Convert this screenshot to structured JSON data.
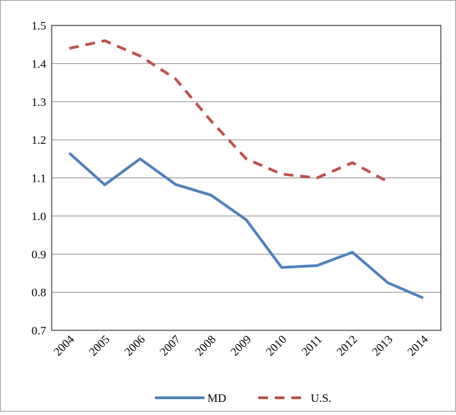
{
  "chart_data": {
    "type": "line",
    "categories": [
      "2004",
      "2005",
      "2006",
      "2007",
      "2008",
      "2009",
      "2010",
      "2011",
      "2012",
      "2013",
      "2014"
    ],
    "series": [
      {
        "name": "MD",
        "color": "#4f81bd",
        "dashed": false,
        "values": [
          1.165,
          1.082,
          1.15,
          1.083,
          1.055,
          0.99,
          0.865,
          0.87,
          0.905,
          0.825,
          0.785
        ]
      },
      {
        "name": "U.S.",
        "color": "#c0504d",
        "dashed": true,
        "values": [
          1.44,
          1.46,
          1.42,
          1.36,
          1.25,
          1.15,
          1.11,
          1.1,
          1.14,
          1.09,
          null
        ]
      }
    ],
    "ylim": [
      0.7,
      1.5
    ],
    "yticks": [
      0.7,
      0.8,
      0.9,
      {
        "value": 1,
        "label": "1.0"
      },
      1.1,
      1.2,
      1.3,
      1.4,
      1.5
    ],
    "grid": true
  }
}
